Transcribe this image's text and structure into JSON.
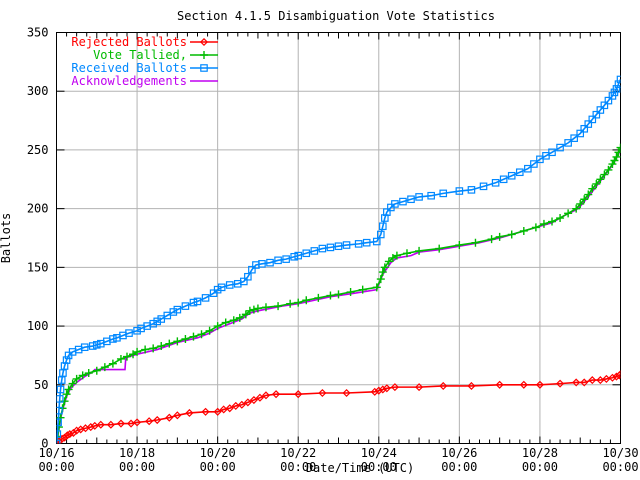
{
  "chart_data": {
    "type": "line",
    "title": "Section 4.1.5 Disambiguation Vote Statistics",
    "xlabel": "Date/Time (UTC)",
    "ylabel": "Ballots",
    "xlim_days": [
      0,
      14
    ],
    "ylim": [
      0,
      350
    ],
    "grid": true,
    "legend_position": "top-left",
    "axis_color": "#000000",
    "grid_color": "#b3b3b3",
    "y_ticks": [
      0,
      50,
      100,
      150,
      200,
      250,
      300,
      350
    ],
    "x_ticks": [
      {
        "days": 0,
        "line1": "10/16",
        "line2": "00:00"
      },
      {
        "days": 2,
        "line1": "10/18",
        "line2": "00:00"
      },
      {
        "days": 4,
        "line1": "10/20",
        "line2": "00:00"
      },
      {
        "days": 6,
        "line1": "10/22",
        "line2": "00:00"
      },
      {
        "days": 8,
        "line1": "10/24",
        "line2": "00:00"
      },
      {
        "days": 10,
        "line1": "10/26",
        "line2": "00:00"
      },
      {
        "days": 12,
        "line1": "10/28",
        "line2": "00:00"
      },
      {
        "days": 14,
        "line1": "10/30",
        "line2": "00:00"
      }
    ],
    "x_minor_tick_days": 0.25,
    "x_day_tick_days": 1,
    "draw_order": [
      3,
      1,
      0,
      2
    ],
    "series": [
      {
        "name": "Rejected Ballots",
        "color": "#ff0000",
        "marker": "diamond",
        "points": [
          [
            0,
            0
          ],
          [
            0.07,
            2
          ],
          [
            0.14,
            4
          ],
          [
            0.2,
            5
          ],
          [
            0.27,
            7
          ],
          [
            0.33,
            8
          ],
          [
            0.42,
            9
          ],
          [
            0.5,
            11
          ],
          [
            0.6,
            12
          ],
          [
            0.72,
            13
          ],
          [
            0.85,
            14
          ],
          [
            0.95,
            15
          ],
          [
            1.1,
            16
          ],
          [
            1.35,
            16
          ],
          [
            1.6,
            17
          ],
          [
            1.85,
            17
          ],
          [
            2.0,
            18
          ],
          [
            2.3,
            19
          ],
          [
            2.5,
            20
          ],
          [
            2.8,
            22
          ],
          [
            3.0,
            24
          ],
          [
            3.3,
            26
          ],
          [
            3.7,
            27
          ],
          [
            4.0,
            27
          ],
          [
            4.15,
            29
          ],
          [
            4.3,
            30
          ],
          [
            4.45,
            32
          ],
          [
            4.6,
            33
          ],
          [
            4.75,
            35
          ],
          [
            4.9,
            37
          ],
          [
            5.05,
            39
          ],
          [
            5.2,
            41
          ],
          [
            5.45,
            42
          ],
          [
            6.0,
            42
          ],
          [
            6.6,
            43
          ],
          [
            7.2,
            43
          ],
          [
            7.9,
            44
          ],
          [
            8.0,
            45
          ],
          [
            8.1,
            46
          ],
          [
            8.2,
            47
          ],
          [
            8.4,
            48
          ],
          [
            9.0,
            48
          ],
          [
            9.6,
            49
          ],
          [
            10.3,
            49
          ],
          [
            11.0,
            50
          ],
          [
            11.6,
            50
          ],
          [
            12.0,
            50
          ],
          [
            12.5,
            51
          ],
          [
            12.9,
            52
          ],
          [
            13.1,
            52
          ],
          [
            13.3,
            54
          ],
          [
            13.5,
            54
          ],
          [
            13.65,
            55
          ],
          [
            13.8,
            56
          ],
          [
            13.9,
            57
          ],
          [
            13.97,
            58
          ],
          [
            14.0,
            59
          ]
        ]
      },
      {
        "name": "Vote Tallied,",
        "color": "#00bb00",
        "marker": "plus",
        "points": [
          [
            0,
            0
          ],
          [
            0.03,
            6
          ],
          [
            0.06,
            14
          ],
          [
            0.1,
            22
          ],
          [
            0.15,
            30
          ],
          [
            0.2,
            36
          ],
          [
            0.25,
            42
          ],
          [
            0.3,
            46
          ],
          [
            0.4,
            51
          ],
          [
            0.5,
            55
          ],
          [
            0.65,
            58
          ],
          [
            0.8,
            60
          ],
          [
            1.0,
            62
          ],
          [
            1.2,
            65
          ],
          [
            1.4,
            68
          ],
          [
            1.6,
            72
          ],
          [
            1.75,
            74
          ],
          [
            1.9,
            76
          ],
          [
            2.0,
            78
          ],
          [
            2.2,
            80
          ],
          [
            2.4,
            81
          ],
          [
            2.6,
            83
          ],
          [
            2.8,
            85
          ],
          [
            3.0,
            87
          ],
          [
            3.2,
            89
          ],
          [
            3.4,
            91
          ],
          [
            3.6,
            93
          ],
          [
            3.8,
            96
          ],
          [
            4.0,
            100
          ],
          [
            4.2,
            103
          ],
          [
            4.4,
            105
          ],
          [
            4.55,
            107
          ],
          [
            4.7,
            110
          ],
          [
            4.8,
            113
          ],
          [
            4.9,
            114
          ],
          [
            5.0,
            115
          ],
          [
            5.2,
            116
          ],
          [
            5.5,
            117
          ],
          [
            5.8,
            119
          ],
          [
            6.0,
            120
          ],
          [
            6.2,
            122
          ],
          [
            6.5,
            124
          ],
          [
            6.8,
            126
          ],
          [
            7.0,
            127
          ],
          [
            7.3,
            129
          ],
          [
            7.6,
            131
          ],
          [
            7.95,
            133
          ],
          [
            8.05,
            140
          ],
          [
            8.1,
            146
          ],
          [
            8.15,
            150
          ],
          [
            8.25,
            155
          ],
          [
            8.35,
            158
          ],
          [
            8.45,
            160
          ],
          [
            8.7,
            162
          ],
          [
            9.0,
            164
          ],
          [
            9.5,
            166
          ],
          [
            10.0,
            169
          ],
          [
            10.4,
            171
          ],
          [
            10.8,
            174
          ],
          [
            11.0,
            176
          ],
          [
            11.3,
            178
          ],
          [
            11.6,
            181
          ],
          [
            11.9,
            184
          ],
          [
            12.1,
            187
          ],
          [
            12.3,
            189
          ],
          [
            12.5,
            192
          ],
          [
            12.7,
            196
          ],
          [
            12.9,
            200
          ],
          [
            13.0,
            204
          ],
          [
            13.1,
            208
          ],
          [
            13.2,
            212
          ],
          [
            13.3,
            217
          ],
          [
            13.4,
            221
          ],
          [
            13.5,
            225
          ],
          [
            13.6,
            229
          ],
          [
            13.7,
            233
          ],
          [
            13.8,
            238
          ],
          [
            13.85,
            241
          ],
          [
            13.9,
            244
          ],
          [
            13.95,
            248
          ],
          [
            14.0,
            252
          ]
        ]
      },
      {
        "name": "Received Ballots",
        "color": "#0088ff",
        "marker": "square",
        "points": [
          [
            0,
            0
          ],
          [
            0.02,
            8
          ],
          [
            0.04,
            18
          ],
          [
            0.06,
            28
          ],
          [
            0.08,
            38
          ],
          [
            0.1,
            46
          ],
          [
            0.13,
            54
          ],
          [
            0.16,
            60
          ],
          [
            0.2,
            66
          ],
          [
            0.25,
            71
          ],
          [
            0.3,
            75
          ],
          [
            0.4,
            78
          ],
          [
            0.55,
            80
          ],
          [
            0.7,
            82
          ],
          [
            0.9,
            83
          ],
          [
            1.0,
            84
          ],
          [
            1.1,
            85
          ],
          [
            1.25,
            87
          ],
          [
            1.4,
            89
          ],
          [
            1.5,
            90
          ],
          [
            1.65,
            92
          ],
          [
            1.8,
            94
          ],
          [
            2.0,
            96
          ],
          [
            2.1,
            98
          ],
          [
            2.25,
            100
          ],
          [
            2.4,
            102
          ],
          [
            2.5,
            104
          ],
          [
            2.6,
            106
          ],
          [
            2.75,
            109
          ],
          [
            2.9,
            112
          ],
          [
            3.0,
            114
          ],
          [
            3.2,
            117
          ],
          [
            3.4,
            120
          ],
          [
            3.5,
            121
          ],
          [
            3.7,
            124
          ],
          [
            3.9,
            128
          ],
          [
            4.0,
            131
          ],
          [
            4.1,
            133
          ],
          [
            4.3,
            135
          ],
          [
            4.5,
            136
          ],
          [
            4.65,
            138
          ],
          [
            4.75,
            142
          ],
          [
            4.85,
            148
          ],
          [
            4.95,
            152
          ],
          [
            5.1,
            153
          ],
          [
            5.3,
            154
          ],
          [
            5.5,
            156
          ],
          [
            5.7,
            157
          ],
          [
            5.9,
            159
          ],
          [
            6.0,
            160
          ],
          [
            6.2,
            162
          ],
          [
            6.4,
            164
          ],
          [
            6.6,
            166
          ],
          [
            6.8,
            167
          ],
          [
            7.0,
            168
          ],
          [
            7.2,
            169
          ],
          [
            7.5,
            170
          ],
          [
            7.7,
            171
          ],
          [
            7.95,
            172
          ],
          [
            8.05,
            178
          ],
          [
            8.1,
            185
          ],
          [
            8.15,
            192
          ],
          [
            8.2,
            197
          ],
          [
            8.3,
            201
          ],
          [
            8.4,
            204
          ],
          [
            8.6,
            206
          ],
          [
            8.8,
            208
          ],
          [
            9.0,
            210
          ],
          [
            9.3,
            211
          ],
          [
            9.6,
            213
          ],
          [
            10.0,
            215
          ],
          [
            10.3,
            216
          ],
          [
            10.6,
            219
          ],
          [
            10.9,
            222
          ],
          [
            11.1,
            225
          ],
          [
            11.3,
            228
          ],
          [
            11.5,
            231
          ],
          [
            11.7,
            234
          ],
          [
            11.85,
            238
          ],
          [
            12.0,
            242
          ],
          [
            12.15,
            245
          ],
          [
            12.3,
            248
          ],
          [
            12.5,
            252
          ],
          [
            12.7,
            256
          ],
          [
            12.85,
            260
          ],
          [
            13.0,
            264
          ],
          [
            13.1,
            268
          ],
          [
            13.2,
            272
          ],
          [
            13.3,
            276
          ],
          [
            13.4,
            280
          ],
          [
            13.5,
            284
          ],
          [
            13.6,
            288
          ],
          [
            13.7,
            292
          ],
          [
            13.8,
            296
          ],
          [
            13.85,
            299
          ],
          [
            13.9,
            302
          ],
          [
            13.95,
            306
          ],
          [
            14.0,
            310
          ]
        ]
      },
      {
        "name": "Acknowledgements",
        "color": "#c000f0",
        "marker": "none",
        "points": [
          [
            0,
            0
          ],
          [
            0.04,
            8
          ],
          [
            0.08,
            16
          ],
          [
            0.12,
            24
          ],
          [
            0.18,
            32
          ],
          [
            0.25,
            40
          ],
          [
            0.35,
            47
          ],
          [
            0.5,
            52
          ],
          [
            0.7,
            57
          ],
          [
            0.9,
            61
          ],
          [
            0.95,
            63
          ],
          [
            1.7,
            63
          ],
          [
            1.72,
            73
          ],
          [
            2.0,
            76
          ],
          [
            2.5,
            80
          ],
          [
            3.0,
            86
          ],
          [
            3.5,
            90
          ],
          [
            3.8,
            94
          ],
          [
            4.0,
            98
          ],
          [
            4.3,
            102
          ],
          [
            4.6,
            106
          ],
          [
            4.8,
            111
          ],
          [
            5.0,
            113
          ],
          [
            5.3,
            115
          ],
          [
            5.6,
            117
          ],
          [
            6.0,
            119
          ],
          [
            6.4,
            122
          ],
          [
            6.8,
            125
          ],
          [
            7.0,
            126
          ],
          [
            7.4,
            128
          ],
          [
            7.95,
            131
          ],
          [
            8.1,
            144
          ],
          [
            8.3,
            154
          ],
          [
            8.45,
            158
          ],
          [
            8.8,
            160
          ],
          [
            9.0,
            163
          ],
          [
            9.5,
            165
          ],
          [
            10.0,
            168
          ],
          [
            10.5,
            171
          ],
          [
            11.0,
            175
          ],
          [
            11.5,
            180
          ],
          [
            12.0,
            185
          ],
          [
            12.3,
            188
          ],
          [
            12.6,
            194
          ],
          [
            12.9,
            199
          ],
          [
            13.0,
            202
          ],
          [
            13.2,
            210
          ],
          [
            13.4,
            219
          ],
          [
            13.6,
            228
          ],
          [
            13.8,
            237
          ],
          [
            13.9,
            243
          ],
          [
            14.0,
            250
          ]
        ]
      }
    ]
  }
}
